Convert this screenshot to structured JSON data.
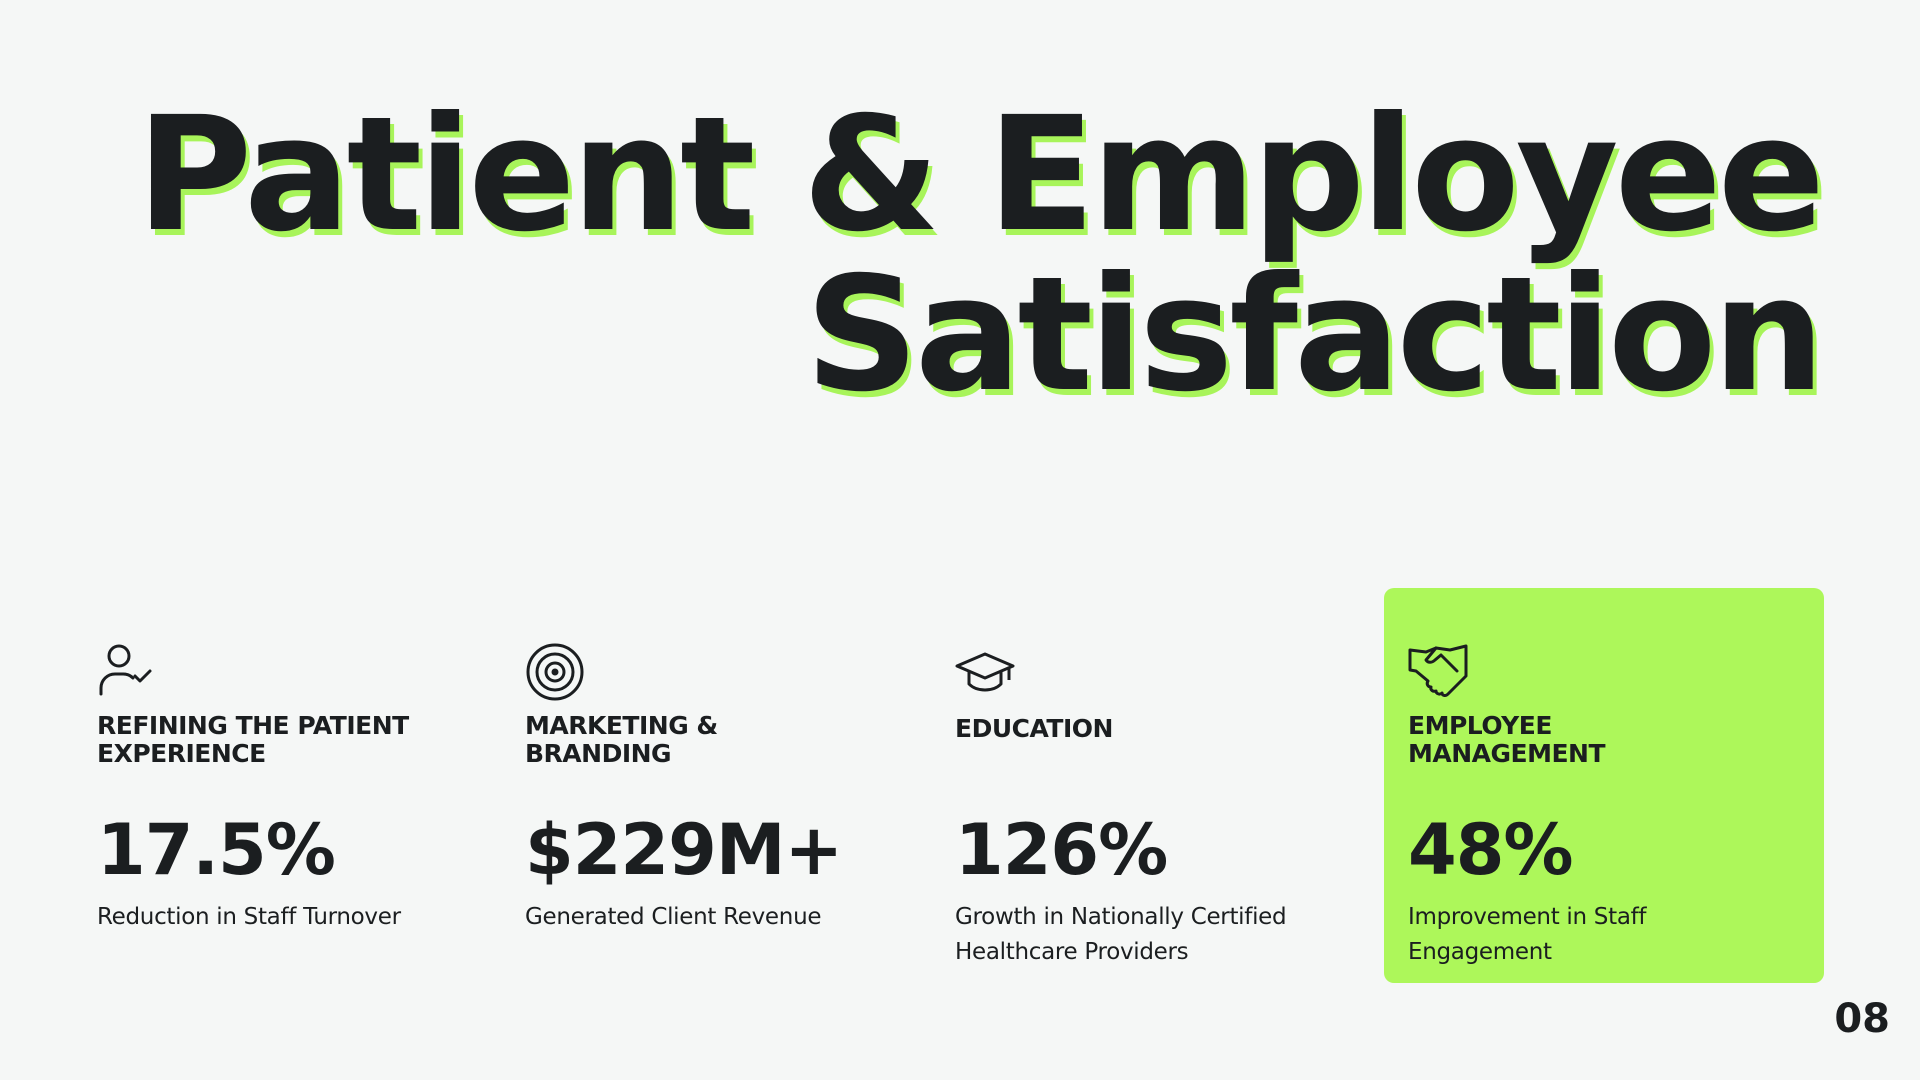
{
  "title_lines": [
    "Patient & Employee",
    "Satisfaction"
  ],
  "cards": [
    {
      "heading": "REFINING THE PATIENT EXPERIENCE",
      "value": "17.5%",
      "description": "Reduction in Staff Turnover"
    },
    {
      "heading": "MARKETING & BRANDING",
      "value": "$229M+",
      "description": "Generated Client Revenue"
    },
    {
      "heading": "EDUCATION",
      "value": "126%",
      "description": "Growth in Nationally Certified Healthcare Providers"
    },
    {
      "heading": "EMPLOYEE MANAGEMENT",
      "value": "48%",
      "description": "Improvement in Staff Engagement"
    }
  ],
  "page_number": "08"
}
